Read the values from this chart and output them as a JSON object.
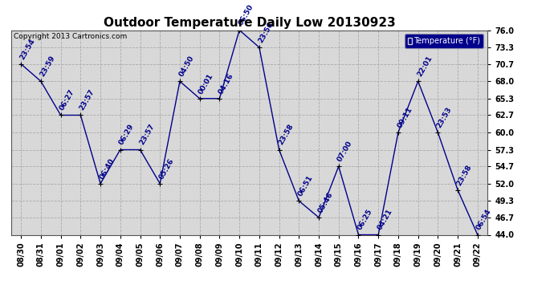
{
  "title": "Outdoor Temperature Daily Low 20130923",
  "copyright": "Copyright 2013 Cartronics.com",
  "legend_label": "Temperature (°F)",
  "ylim": [
    44.0,
    76.0
  ],
  "yticks": [
    44.0,
    46.7,
    49.3,
    52.0,
    54.7,
    57.3,
    60.0,
    62.7,
    65.3,
    68.0,
    70.7,
    73.3,
    76.0
  ],
  "background_color": "#ffffff",
  "plot_bg_color": "#d8d8d8",
  "grid_color": "#aaaaaa",
  "line_color": "#00008b",
  "dates": [
    "08/30",
    "08/31",
    "09/01",
    "09/02",
    "09/03",
    "09/04",
    "09/05",
    "09/06",
    "09/07",
    "09/08",
    "09/09",
    "09/10",
    "09/11",
    "09/12",
    "09/13",
    "09/14",
    "09/15",
    "09/16",
    "09/17",
    "09/18",
    "09/19",
    "09/20",
    "09/21",
    "09/22"
  ],
  "values": [
    70.7,
    68.0,
    62.7,
    62.7,
    52.0,
    57.3,
    57.3,
    52.0,
    68.0,
    65.3,
    65.3,
    76.0,
    73.3,
    57.3,
    49.3,
    46.7,
    54.7,
    44.0,
    44.0,
    60.0,
    68.0,
    60.0,
    51.0,
    44.0
  ],
  "time_labels": [
    "23:54",
    "23:59",
    "06:27",
    "23:57",
    "06:40",
    "06:29",
    "23:57",
    "05:26",
    "04:50",
    "00:01",
    "04:16",
    "06:50",
    "23:56",
    "23:58",
    "06:51",
    "05:46",
    "07:00",
    "06:25",
    "04:21",
    "09:11",
    "22:01",
    "23:53",
    "23:58",
    "06:54"
  ],
  "title_fontsize": 11,
  "label_fontsize": 6.5,
  "tick_fontsize": 7,
  "copyright_fontsize": 6.5
}
